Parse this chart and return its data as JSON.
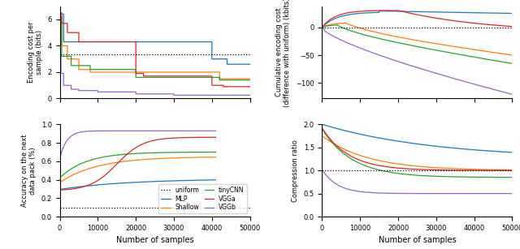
{
  "colors": {
    "uniform": "#000000",
    "MLP": "#1f77b4",
    "Shallow": "#ff7f0e",
    "tinyCNN": "#2ca02c",
    "VGGa": "#d62728",
    "VGGb": "#9467bd"
  },
  "xlim": [
    0,
    50000
  ],
  "xticks": [
    0,
    10000,
    20000,
    30000,
    40000,
    50000
  ],
  "uniform_encoding": 3.32,
  "uniform_accuracy": 0.1,
  "uniform_compression": 1.0
}
